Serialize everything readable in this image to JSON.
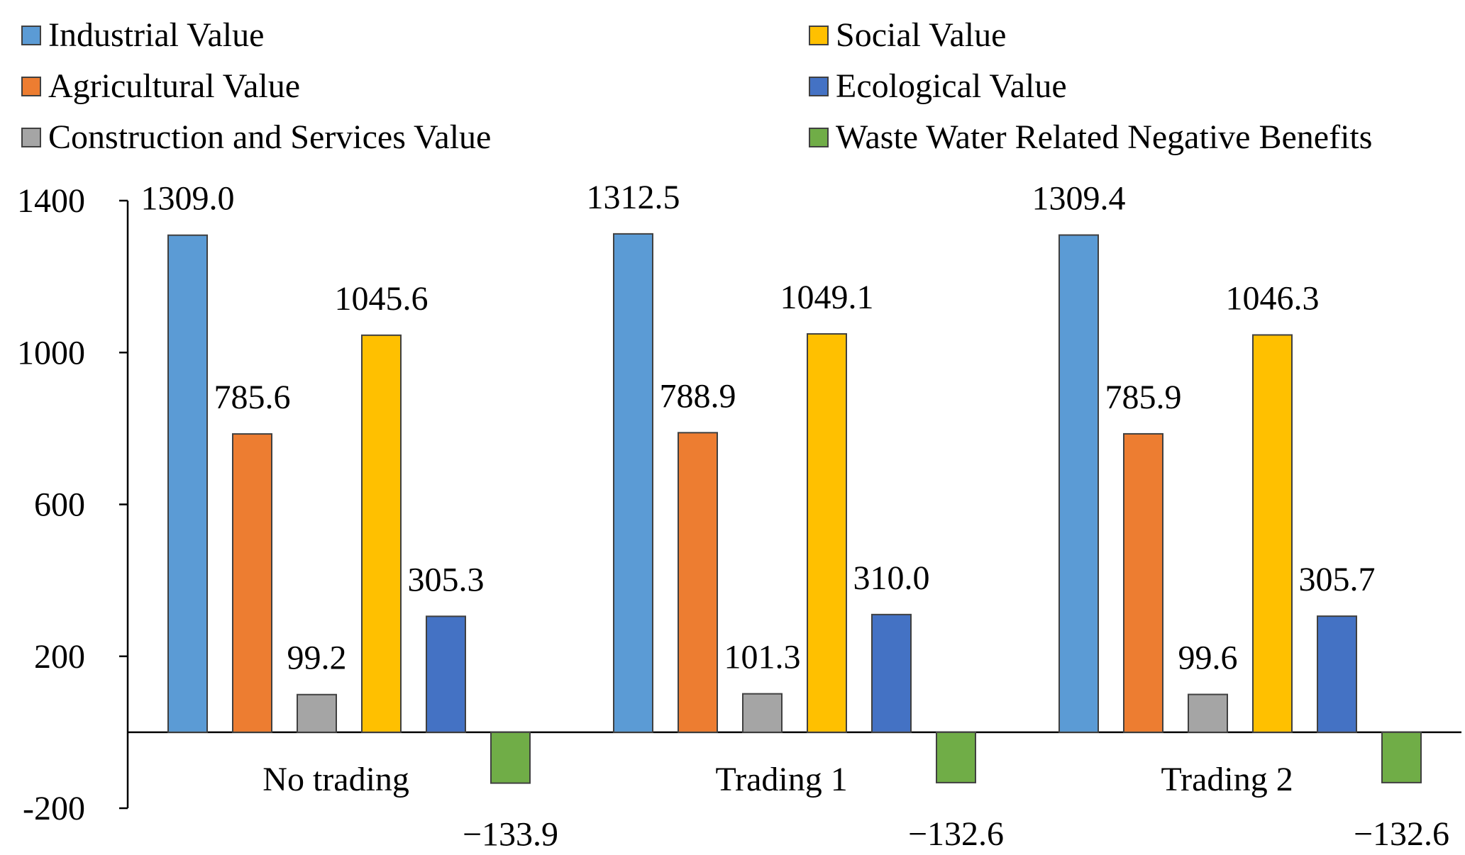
{
  "chart_data": {
    "type": "bar",
    "title": "",
    "xlabel": "",
    "ylabel": "",
    "ylim": [
      -200,
      1400
    ],
    "yticks": [
      1400,
      1000,
      600,
      200,
      -200
    ],
    "categories": [
      "No trading",
      "Trading 1",
      "Trading 2"
    ],
    "legend_position": "top",
    "grid": false,
    "series": [
      {
        "name": "Industrial Value",
        "color": "#5B9BD5",
        "values": [
          1309.0,
          1312.5,
          1309.4
        ],
        "labels": [
          "1309.0",
          "1312.5",
          "1309.4"
        ]
      },
      {
        "name": "Agricultural Value",
        "color": "#ED7D31",
        "values": [
          785.6,
          788.9,
          785.9
        ],
        "labels": [
          "785.6",
          "788.9",
          "785.9"
        ]
      },
      {
        "name": "Construction and Services Value",
        "color": "#A5A5A5",
        "values": [
          99.2,
          101.3,
          99.6
        ],
        "labels": [
          "99.2",
          "101.3",
          "99.6"
        ]
      },
      {
        "name": "Social Value",
        "color": "#FFC000",
        "values": [
          1045.6,
          1049.1,
          1046.3
        ],
        "labels": [
          "1045.6",
          "1049.1",
          "1046.3"
        ]
      },
      {
        "name": "Ecological Value",
        "color": "#4472C4",
        "values": [
          305.3,
          310.0,
          305.7
        ],
        "labels": [
          "305.3",
          "310.0",
          "305.7"
        ]
      },
      {
        "name": "Waste Water Related Negative Benefits",
        "color": "#70AD47",
        "values": [
          -133.9,
          -132.6,
          -132.6
        ],
        "labels": [
          "−133.9",
          "−132.6",
          "−132.6"
        ]
      }
    ]
  }
}
